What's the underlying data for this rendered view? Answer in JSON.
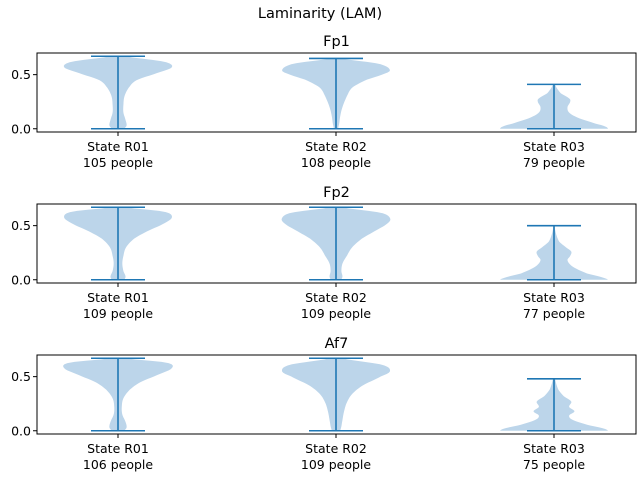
{
  "figure_title": "Laminarity (LAM)",
  "colors": {
    "body": "#bcd5ea",
    "line": "#1f77b4",
    "axis": "#000000"
  },
  "chart_data": [
    {
      "type": "violin",
      "title": "Fp1",
      "ylim": [
        -0.03,
        0.7
      ],
      "yticks": [
        "0.0",
        "0.5"
      ],
      "ytick_values": [
        0.0,
        0.5
      ],
      "categories": [
        "State R01\n105 people",
        "State R02\n108 people",
        "State R03\n79 people"
      ],
      "series": [
        {
          "min": 0.0,
          "max": 0.67,
          "profile": [
            [
              0.0,
              0.12
            ],
            [
              0.03,
              0.16
            ],
            [
              0.08,
              0.14
            ],
            [
              0.15,
              0.1
            ],
            [
              0.22,
              0.1
            ],
            [
              0.3,
              0.12
            ],
            [
              0.38,
              0.2
            ],
            [
              0.45,
              0.35
            ],
            [
              0.52,
              0.75
            ],
            [
              0.57,
              1.0
            ],
            [
              0.62,
              0.85
            ],
            [
              0.67,
              0.15
            ]
          ]
        },
        {
          "min": 0.0,
          "max": 0.65,
          "profile": [
            [
              0.0,
              0.04
            ],
            [
              0.05,
              0.06
            ],
            [
              0.12,
              0.08
            ],
            [
              0.2,
              0.12
            ],
            [
              0.3,
              0.2
            ],
            [
              0.38,
              0.3
            ],
            [
              0.45,
              0.55
            ],
            [
              0.5,
              0.85
            ],
            [
              0.54,
              1.0
            ],
            [
              0.6,
              0.8
            ],
            [
              0.65,
              0.12
            ]
          ]
        },
        {
          "min": 0.0,
          "max": 0.41,
          "profile": [
            [
              0.0,
              1.0
            ],
            [
              0.02,
              0.95
            ],
            [
              0.05,
              0.75
            ],
            [
              0.1,
              0.45
            ],
            [
              0.15,
              0.28
            ],
            [
              0.2,
              0.25
            ],
            [
              0.25,
              0.3
            ],
            [
              0.28,
              0.28
            ],
            [
              0.33,
              0.12
            ],
            [
              0.41,
              0.02
            ]
          ]
        }
      ]
    },
    {
      "type": "violin",
      "title": "Fp2",
      "ylim": [
        -0.03,
        0.7
      ],
      "yticks": [
        "0.0",
        "0.5"
      ],
      "ytick_values": [
        0.0,
        0.5
      ],
      "categories": [
        "State R01\n109 people",
        "State R02\n109 people",
        "State R03\n77 people"
      ],
      "series": [
        {
          "min": 0.0,
          "max": 0.67,
          "profile": [
            [
              0.0,
              0.12
            ],
            [
              0.03,
              0.14
            ],
            [
              0.08,
              0.1
            ],
            [
              0.15,
              0.08
            ],
            [
              0.22,
              0.1
            ],
            [
              0.3,
              0.15
            ],
            [
              0.38,
              0.3
            ],
            [
              0.45,
              0.55
            ],
            [
              0.52,
              0.85
            ],
            [
              0.58,
              1.0
            ],
            [
              0.63,
              0.85
            ],
            [
              0.67,
              0.15
            ]
          ]
        },
        {
          "min": 0.0,
          "max": 0.67,
          "profile": [
            [
              0.0,
              0.1
            ],
            [
              0.03,
              0.12
            ],
            [
              0.08,
              0.1
            ],
            [
              0.15,
              0.12
            ],
            [
              0.22,
              0.2
            ],
            [
              0.3,
              0.3
            ],
            [
              0.38,
              0.48
            ],
            [
              0.45,
              0.72
            ],
            [
              0.52,
              0.95
            ],
            [
              0.57,
              1.0
            ],
            [
              0.62,
              0.82
            ],
            [
              0.67,
              0.12
            ]
          ]
        },
        {
          "min": 0.0,
          "max": 0.5,
          "profile": [
            [
              0.0,
              1.0
            ],
            [
              0.02,
              0.9
            ],
            [
              0.06,
              0.6
            ],
            [
              0.12,
              0.35
            ],
            [
              0.18,
              0.25
            ],
            [
              0.22,
              0.3
            ],
            [
              0.26,
              0.32
            ],
            [
              0.3,
              0.22
            ],
            [
              0.35,
              0.1
            ],
            [
              0.42,
              0.04
            ],
            [
              0.5,
              0.01
            ]
          ]
        }
      ]
    },
    {
      "type": "violin",
      "title": "Af7",
      "ylim": [
        -0.03,
        0.7
      ],
      "yticks": [
        "0.0",
        "0.5"
      ],
      "ytick_values": [
        0.0,
        0.5
      ],
      "categories": [
        "State R01\n106 people",
        "State R02\n109 people",
        "State R03\n75 people"
      ],
      "series": [
        {
          "min": 0.0,
          "max": 0.67,
          "profile": [
            [
              0.0,
              0.12
            ],
            [
              0.03,
              0.16
            ],
            [
              0.08,
              0.14
            ],
            [
              0.15,
              0.08
            ],
            [
              0.22,
              0.07
            ],
            [
              0.3,
              0.1
            ],
            [
              0.38,
              0.22
            ],
            [
              0.45,
              0.42
            ],
            [
              0.52,
              0.75
            ],
            [
              0.58,
              1.0
            ],
            [
              0.63,
              0.9
            ],
            [
              0.67,
              0.15
            ]
          ]
        },
        {
          "min": 0.0,
          "max": 0.67,
          "profile": [
            [
              0.0,
              0.08
            ],
            [
              0.04,
              0.1
            ],
            [
              0.1,
              0.12
            ],
            [
              0.18,
              0.15
            ],
            [
              0.26,
              0.2
            ],
            [
              0.34,
              0.3
            ],
            [
              0.42,
              0.5
            ],
            [
              0.5,
              0.82
            ],
            [
              0.55,
              1.0
            ],
            [
              0.61,
              0.85
            ],
            [
              0.67,
              0.12
            ]
          ]
        },
        {
          "min": 0.0,
          "max": 0.48,
          "profile": [
            [
              0.0,
              1.0
            ],
            [
              0.02,
              0.92
            ],
            [
              0.05,
              0.65
            ],
            [
              0.1,
              0.35
            ],
            [
              0.14,
              0.28
            ],
            [
              0.18,
              0.38
            ],
            [
              0.22,
              0.28
            ],
            [
              0.27,
              0.32
            ],
            [
              0.32,
              0.18
            ],
            [
              0.38,
              0.08
            ],
            [
              0.48,
              0.02
            ]
          ]
        }
      ]
    }
  ]
}
